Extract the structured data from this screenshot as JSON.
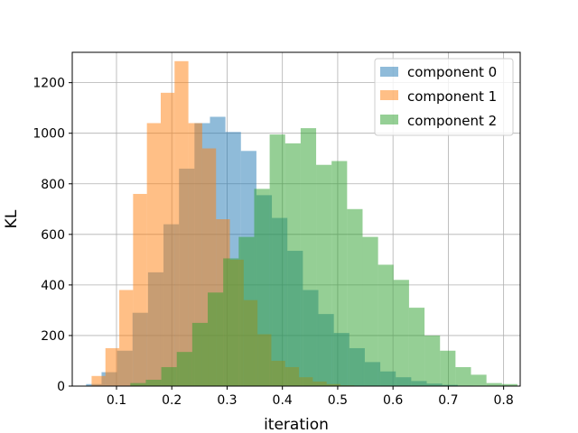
{
  "chart_data": {
    "type": "histogram",
    "xlabel": "iteration",
    "ylabel": "KL",
    "xlim": [
      0.02,
      0.83
    ],
    "ylim": [
      0,
      1320
    ],
    "xticks": [
      0.1,
      0.2,
      0.3,
      0.4,
      0.5,
      0.6,
      0.7,
      0.8
    ],
    "xtick_labels": [
      "0.1",
      "0.2",
      "0.3",
      "0.4",
      "0.5",
      "0.6",
      "0.7",
      "0.8"
    ],
    "yticks": [
      0,
      200,
      400,
      600,
      800,
      1000,
      1200
    ],
    "ytick_labels": [
      "0",
      "200",
      "400",
      "600",
      "800",
      "1000",
      "1200"
    ],
    "grid": true,
    "legend_position": "top-right",
    "alpha": 0.5,
    "series": [
      {
        "name": "component 0",
        "color": "#1f77b4",
        "bins": [
          {
            "x0": 0.045,
            "x1": 0.073,
            "count": 8
          },
          {
            "x0": 0.073,
            "x1": 0.101,
            "count": 55
          },
          {
            "x0": 0.101,
            "x1": 0.129,
            "count": 140
          },
          {
            "x0": 0.129,
            "x1": 0.157,
            "count": 290
          },
          {
            "x0": 0.157,
            "x1": 0.185,
            "count": 450
          },
          {
            "x0": 0.185,
            "x1": 0.213,
            "count": 640
          },
          {
            "x0": 0.213,
            "x1": 0.241,
            "count": 860
          },
          {
            "x0": 0.241,
            "x1": 0.269,
            "count": 1040
          },
          {
            "x0": 0.269,
            "x1": 0.297,
            "count": 1065
          },
          {
            "x0": 0.297,
            "x1": 0.325,
            "count": 1005
          },
          {
            "x0": 0.325,
            "x1": 0.353,
            "count": 930
          },
          {
            "x0": 0.353,
            "x1": 0.381,
            "count": 755
          },
          {
            "x0": 0.381,
            "x1": 0.409,
            "count": 665
          },
          {
            "x0": 0.409,
            "x1": 0.437,
            "count": 535
          },
          {
            "x0": 0.437,
            "x1": 0.465,
            "count": 380
          },
          {
            "x0": 0.465,
            "x1": 0.493,
            "count": 285
          },
          {
            "x0": 0.493,
            "x1": 0.521,
            "count": 210
          },
          {
            "x0": 0.521,
            "x1": 0.549,
            "count": 150
          },
          {
            "x0": 0.549,
            "x1": 0.577,
            "count": 95
          },
          {
            "x0": 0.577,
            "x1": 0.605,
            "count": 58
          },
          {
            "x0": 0.605,
            "x1": 0.633,
            "count": 35
          },
          {
            "x0": 0.633,
            "x1": 0.661,
            "count": 20
          },
          {
            "x0": 0.661,
            "x1": 0.689,
            "count": 10
          },
          {
            "x0": 0.689,
            "x1": 0.717,
            "count": 5
          },
          {
            "x0": 0.717,
            "x1": 0.745,
            "count": 2
          }
        ]
      },
      {
        "name": "component 1",
        "color": "#ff7f0e",
        "bins": [
          {
            "x0": 0.055,
            "x1": 0.08,
            "count": 40
          },
          {
            "x0": 0.08,
            "x1": 0.105,
            "count": 150
          },
          {
            "x0": 0.105,
            "x1": 0.13,
            "count": 380
          },
          {
            "x0": 0.13,
            "x1": 0.155,
            "count": 760
          },
          {
            "x0": 0.155,
            "x1": 0.18,
            "count": 1040
          },
          {
            "x0": 0.18,
            "x1": 0.205,
            "count": 1160
          },
          {
            "x0": 0.205,
            "x1": 0.23,
            "count": 1285
          },
          {
            "x0": 0.23,
            "x1": 0.255,
            "count": 1040
          },
          {
            "x0": 0.255,
            "x1": 0.28,
            "count": 940
          },
          {
            "x0": 0.28,
            "x1": 0.305,
            "count": 660
          },
          {
            "x0": 0.305,
            "x1": 0.33,
            "count": 500
          },
          {
            "x0": 0.33,
            "x1": 0.355,
            "count": 340
          },
          {
            "x0": 0.355,
            "x1": 0.38,
            "count": 205
          },
          {
            "x0": 0.38,
            "x1": 0.405,
            "count": 100
          },
          {
            "x0": 0.405,
            "x1": 0.43,
            "count": 75
          },
          {
            "x0": 0.43,
            "x1": 0.455,
            "count": 35
          },
          {
            "x0": 0.455,
            "x1": 0.48,
            "count": 18
          },
          {
            "x0": 0.48,
            "x1": 0.505,
            "count": 8
          },
          {
            "x0": 0.505,
            "x1": 0.53,
            "count": 3
          }
        ]
      },
      {
        "name": "component 2",
        "color": "#2ca02c",
        "bins": [
          {
            "x0": 0.125,
            "x1": 0.153,
            "count": 12
          },
          {
            "x0": 0.153,
            "x1": 0.181,
            "count": 25
          },
          {
            "x0": 0.181,
            "x1": 0.209,
            "count": 75
          },
          {
            "x0": 0.209,
            "x1": 0.237,
            "count": 135
          },
          {
            "x0": 0.237,
            "x1": 0.265,
            "count": 250
          },
          {
            "x0": 0.265,
            "x1": 0.293,
            "count": 370
          },
          {
            "x0": 0.293,
            "x1": 0.321,
            "count": 505
          },
          {
            "x0": 0.321,
            "x1": 0.349,
            "count": 590
          },
          {
            "x0": 0.349,
            "x1": 0.377,
            "count": 780
          },
          {
            "x0": 0.377,
            "x1": 0.405,
            "count": 995
          },
          {
            "x0": 0.405,
            "x1": 0.433,
            "count": 960
          },
          {
            "x0": 0.433,
            "x1": 0.461,
            "count": 1020
          },
          {
            "x0": 0.461,
            "x1": 0.489,
            "count": 875
          },
          {
            "x0": 0.489,
            "x1": 0.517,
            "count": 890
          },
          {
            "x0": 0.517,
            "x1": 0.545,
            "count": 700
          },
          {
            "x0": 0.545,
            "x1": 0.573,
            "count": 590
          },
          {
            "x0": 0.573,
            "x1": 0.601,
            "count": 480
          },
          {
            "x0": 0.601,
            "x1": 0.629,
            "count": 420
          },
          {
            "x0": 0.629,
            "x1": 0.657,
            "count": 310
          },
          {
            "x0": 0.657,
            "x1": 0.685,
            "count": 200
          },
          {
            "x0": 0.685,
            "x1": 0.713,
            "count": 140
          },
          {
            "x0": 0.713,
            "x1": 0.741,
            "count": 75
          },
          {
            "x0": 0.741,
            "x1": 0.769,
            "count": 45
          },
          {
            "x0": 0.769,
            "x1": 0.797,
            "count": 12
          },
          {
            "x0": 0.797,
            "x1": 0.825,
            "count": 8
          }
        ]
      }
    ]
  }
}
